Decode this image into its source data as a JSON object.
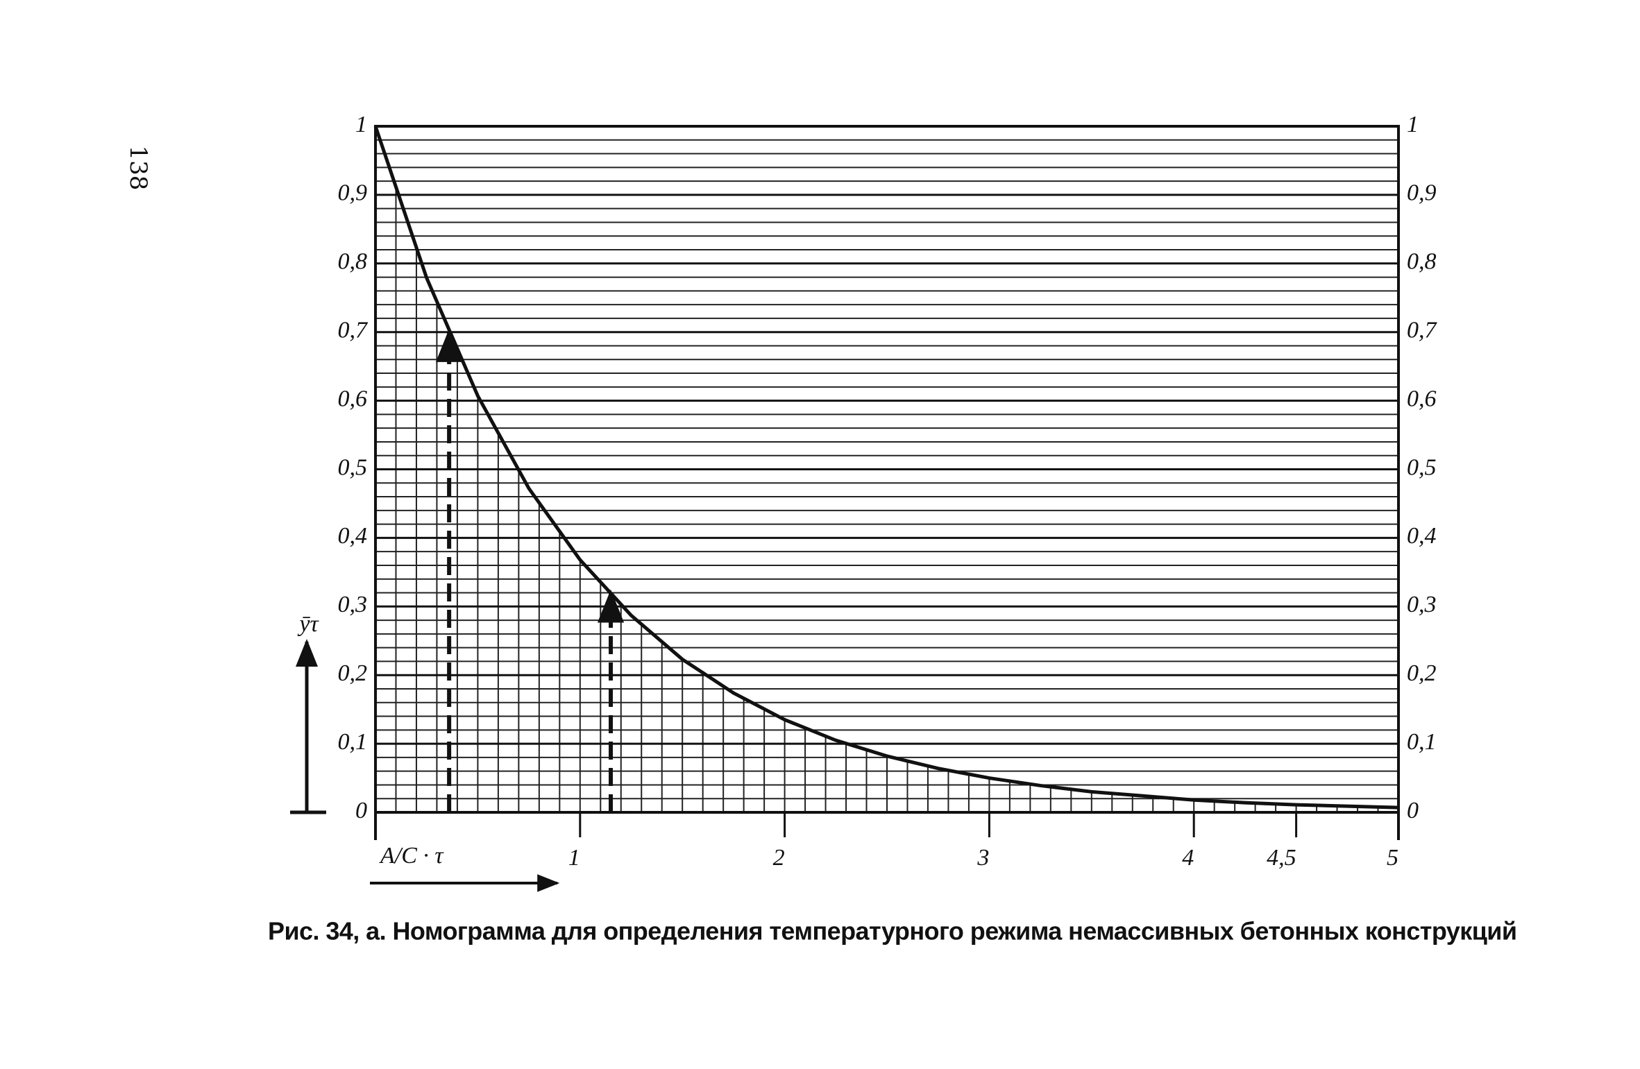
{
  "chart_data": {
    "type": "line",
    "title": "Рис. 34, а. Номограмма для определения температурного режима немассивных бетонных конструкций",
    "page_number": "138",
    "x_label": "A/C · τ",
    "y_label": "ȳτ",
    "x": [
      0,
      0.25,
      0.5,
      0.75,
      1,
      1.25,
      1.5,
      1.75,
      2,
      2.25,
      2.5,
      2.75,
      3,
      3.25,
      3.5,
      3.75,
      4,
      4.25,
      4.5,
      4.75,
      5
    ],
    "values": [
      1,
      0.779,
      0.607,
      0.472,
      0.368,
      0.287,
      0.223,
      0.174,
      0.135,
      0.105,
      0.082,
      0.064,
      0.05,
      0.039,
      0.03,
      0.024,
      0.018,
      0.014,
      0.011,
      0.009,
      0.007
    ],
    "color": "#111111",
    "guides": [
      {
        "x": 0.36,
        "y": 0.7
      },
      {
        "x": 1.15,
        "y": 0.32
      }
    ],
    "xlim": [
      0,
      5
    ],
    "ylim": [
      0,
      1
    ],
    "xticks": [
      1,
      2,
      3,
      4,
      {
        "value": 4.5,
        "label": "4,5"
      },
      5
    ],
    "yticks": [
      0,
      {
        "value": 0.1,
        "label": "0,1"
      },
      {
        "value": 0.2,
        "label": "0,2"
      },
      {
        "value": 0.3,
        "label": "0,3"
      },
      {
        "value": 0.4,
        "label": "0,4"
      },
      {
        "value": 0.5,
        "label": "0,5"
      },
      {
        "value": 0.6,
        "label": "0,6"
      },
      {
        "value": 0.7,
        "label": "0,7"
      },
      {
        "value": 0.8,
        "label": "0,8"
      },
      {
        "value": 0.9,
        "label": "0,9"
      },
      1
    ],
    "grid": true
  }
}
